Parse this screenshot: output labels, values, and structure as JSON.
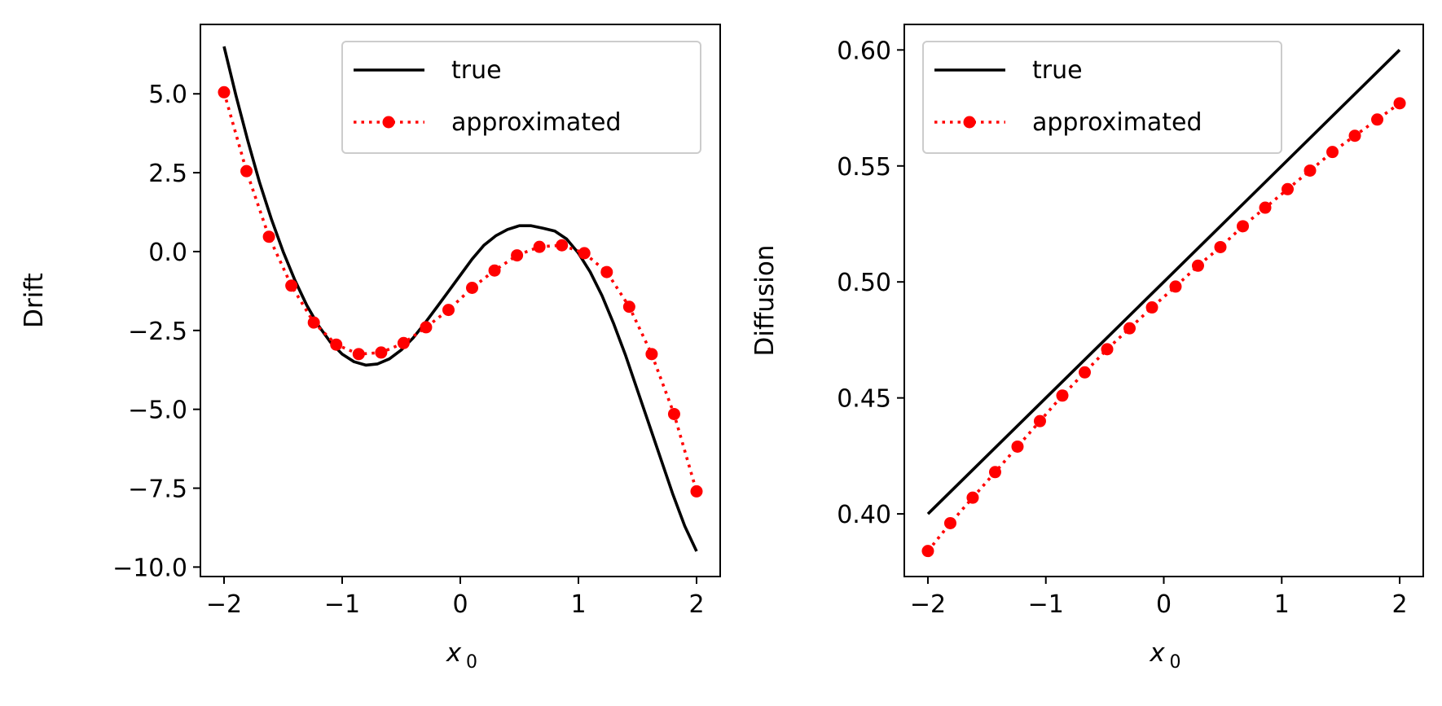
{
  "colors": {
    "true_line": "#000000",
    "approx": "#ff0000",
    "axes": "#000000",
    "legend_border": "#cccccc"
  },
  "chart_data": [
    {
      "type": "line",
      "title": "",
      "xlabel": "x",
      "xlabel_sub": "0",
      "ylabel": "Drift",
      "xlim": [
        -2.2,
        2.2
      ],
      "ylim": [
        -10.3,
        7.2
      ],
      "xticks": [
        -2,
        -1,
        0,
        1,
        2
      ],
      "xtick_labels": [
        "−2",
        "−1",
        "0",
        "1",
        "2"
      ],
      "yticks": [
        5.0,
        2.5,
        0.0,
        -2.5,
        -5.0,
        -7.5,
        -10.0
      ],
      "ytick_labels": [
        "5.0",
        "2.5",
        "0.0",
        "−2.5",
        "−5.0",
        "−7.5",
        "−10.0"
      ],
      "legend": {
        "position": "top-right",
        "entries": [
          "true",
          "approximated"
        ]
      },
      "series": [
        {
          "name": "true",
          "style": "solid",
          "x": [
            -2.0,
            -1.9,
            -1.8,
            -1.7,
            -1.6,
            -1.5,
            -1.4,
            -1.3,
            -1.2,
            -1.1,
            -1.0,
            -0.9,
            -0.8,
            -0.7,
            -0.6,
            -0.5,
            -0.4,
            -0.3,
            -0.2,
            -0.1,
            0.0,
            0.1,
            0.2,
            0.3,
            0.4,
            0.5,
            0.6,
            0.7,
            0.8,
            0.9,
            1.0,
            1.1,
            1.2,
            1.3,
            1.4,
            1.5,
            1.6,
            1.7,
            1.8,
            1.9,
            2.0
          ],
          "y": [
            6.5,
            4.96,
            3.53,
            2.2,
            1.04,
            0.0,
            -0.91,
            -1.7,
            -2.35,
            -2.87,
            -3.25,
            -3.49,
            -3.6,
            -3.56,
            -3.4,
            -3.12,
            -2.74,
            -2.27,
            -1.77,
            -1.26,
            -0.75,
            -0.24,
            0.2,
            0.5,
            0.7,
            0.82,
            0.82,
            0.74,
            0.65,
            0.4,
            -0.05,
            -0.65,
            -1.4,
            -2.3,
            -3.3,
            -4.4,
            -5.5,
            -6.6,
            -7.7,
            -8.7,
            -9.5
          ]
        },
        {
          "name": "approximated",
          "style": "dotted-markers",
          "x": [
            -2.0,
            -1.81,
            -1.62,
            -1.43,
            -1.24,
            -1.05,
            -0.86,
            -0.67,
            -0.48,
            -0.29,
            -0.1,
            0.1,
            0.29,
            0.48,
            0.67,
            0.86,
            1.05,
            1.24,
            1.43,
            1.62,
            1.81,
            2.0
          ],
          "y": [
            5.05,
            2.55,
            0.47,
            -1.08,
            -2.25,
            -2.95,
            -3.25,
            -3.2,
            -2.9,
            -2.4,
            -1.85,
            -1.15,
            -0.6,
            -0.12,
            0.15,
            0.2,
            -0.05,
            -0.65,
            -1.75,
            -3.25,
            -5.15,
            -7.6
          ]
        }
      ]
    },
    {
      "type": "line",
      "title": "",
      "xlabel": "x",
      "xlabel_sub": "0",
      "ylabel": "Diffusion",
      "xlim": [
        -2.2,
        2.2
      ],
      "ylim": [
        0.373,
        0.611
      ],
      "xticks": [
        -2,
        -1,
        0,
        1,
        2
      ],
      "xtick_labels": [
        "−2",
        "−1",
        "0",
        "1",
        "2"
      ],
      "yticks": [
        0.6,
        0.55,
        0.5,
        0.45,
        0.4
      ],
      "ytick_labels": [
        "0.60",
        "0.55",
        "0.50",
        "0.45",
        "0.40"
      ],
      "legend": {
        "position": "top-left",
        "entries": [
          "true",
          "approximated"
        ]
      },
      "series": [
        {
          "name": "true",
          "style": "solid",
          "x": [
            -2.0,
            2.0
          ],
          "y": [
            0.4,
            0.6
          ]
        },
        {
          "name": "approximated",
          "style": "dotted-markers",
          "x": [
            -2.0,
            -1.81,
            -1.62,
            -1.43,
            -1.24,
            -1.05,
            -0.86,
            -0.67,
            -0.48,
            -0.29,
            -0.1,
            0.1,
            0.29,
            0.48,
            0.67,
            0.86,
            1.05,
            1.24,
            1.43,
            1.62,
            1.81,
            2.0
          ],
          "y": [
            0.384,
            0.396,
            0.407,
            0.418,
            0.429,
            0.44,
            0.451,
            0.461,
            0.471,
            0.48,
            0.489,
            0.498,
            0.507,
            0.515,
            0.524,
            0.532,
            0.54,
            0.548,
            0.556,
            0.563,
            0.57,
            0.577
          ]
        }
      ]
    }
  ]
}
